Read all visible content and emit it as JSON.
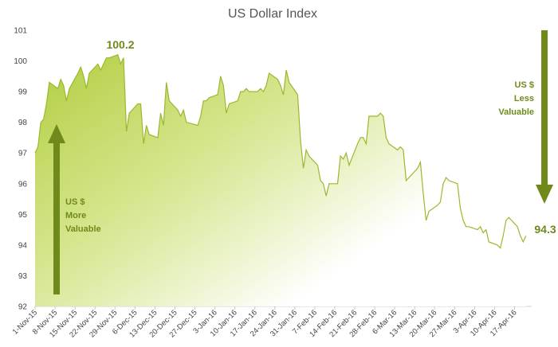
{
  "chart_data": {
    "type": "area",
    "title": "US Dollar Index",
    "xlabel": "",
    "ylabel": "",
    "ylim": [
      92,
      101
    ],
    "yticks": [
      92,
      93,
      94,
      95,
      96,
      97,
      98,
      99,
      100,
      101
    ],
    "xtick_labels": [
      "1-Nov-15",
      "8-Nov-15",
      "15-Nov-15",
      "22-Nov-15",
      "29-Nov-15",
      "6-Dec-15",
      "13-Dec-15",
      "20-Dec-15",
      "27-Dec-15",
      "3-Jan-16",
      "10-Jan-16",
      "17-Jan-16",
      "24-Jan-16",
      "31-Jan-16",
      "7-Feb-16",
      "14-Feb-16",
      "21-Feb-16",
      "28-Feb-16",
      "6-Mar-16",
      "13-Mar-16",
      "20-Mar-16",
      "27-Mar-16",
      "3-Apr-16",
      "10-Apr-16",
      "17-Apr-16"
    ],
    "grid": false,
    "colors": {
      "line": "#9ab82f",
      "fill_top": "#b5d048",
      "fill_bottom": "#ffffff",
      "arrow": "#6f8a1b",
      "annotation": "#6f8a1b"
    },
    "series": [
      {
        "values": [
          {
            "x": "2015-11-01",
            "y": 97.0
          },
          {
            "x": "2015-11-02",
            "y": 97.2
          },
          {
            "x": "2015-11-03",
            "y": 98.0
          },
          {
            "x": "2015-11-04",
            "y": 98.1
          },
          {
            "x": "2015-11-05",
            "y": 98.6
          },
          {
            "x": "2015-11-06",
            "y": 99.3
          },
          {
            "x": "2015-11-09",
            "y": 99.1
          },
          {
            "x": "2015-11-10",
            "y": 99.4
          },
          {
            "x": "2015-11-11",
            "y": 99.2
          },
          {
            "x": "2015-11-12",
            "y": 98.7
          },
          {
            "x": "2015-11-13",
            "y": 99.1
          },
          {
            "x": "2015-11-16",
            "y": 99.6
          },
          {
            "x": "2015-11-17",
            "y": 99.8
          },
          {
            "x": "2015-11-18",
            "y": 99.5
          },
          {
            "x": "2015-11-19",
            "y": 99.1
          },
          {
            "x": "2015-11-20",
            "y": 99.6
          },
          {
            "x": "2015-11-23",
            "y": 99.9
          },
          {
            "x": "2015-11-24",
            "y": 99.7
          },
          {
            "x": "2015-11-25",
            "y": 99.9
          },
          {
            "x": "2015-11-26",
            "y": 100.1
          },
          {
            "x": "2015-11-27",
            "y": 100.1
          },
          {
            "x": "2015-11-30",
            "y": 100.2
          },
          {
            "x": "2015-12-01",
            "y": 99.9
          },
          {
            "x": "2015-12-02",
            "y": 100.1
          },
          {
            "x": "2015-12-03",
            "y": 97.7
          },
          {
            "x": "2015-12-04",
            "y": 98.3
          },
          {
            "x": "2015-12-07",
            "y": 98.6
          },
          {
            "x": "2015-12-08",
            "y": 98.6
          },
          {
            "x": "2015-12-09",
            "y": 97.3
          },
          {
            "x": "2015-12-10",
            "y": 97.9
          },
          {
            "x": "2015-12-11",
            "y": 97.6
          },
          {
            "x": "2015-12-14",
            "y": 97.5
          },
          {
            "x": "2015-12-15",
            "y": 98.3
          },
          {
            "x": "2015-12-16",
            "y": 97.9
          },
          {
            "x": "2015-12-17",
            "y": 99.3
          },
          {
            "x": "2015-12-18",
            "y": 98.7
          },
          {
            "x": "2015-12-21",
            "y": 98.4
          },
          {
            "x": "2015-12-22",
            "y": 98.2
          },
          {
            "x": "2015-12-23",
            "y": 98.4
          },
          {
            "x": "2015-12-24",
            "y": 98.0
          },
          {
            "x": "2015-12-28",
            "y": 97.9
          },
          {
            "x": "2015-12-29",
            "y": 98.2
          },
          {
            "x": "2015-12-30",
            "y": 98.7
          },
          {
            "x": "2015-12-31",
            "y": 98.7
          },
          {
            "x": "2016-01-01",
            "y": 98.8
          },
          {
            "x": "2016-01-04",
            "y": 98.9
          },
          {
            "x": "2016-01-05",
            "y": 99.5
          },
          {
            "x": "2016-01-06",
            "y": 99.2
          },
          {
            "x": "2016-01-07",
            "y": 98.3
          },
          {
            "x": "2016-01-08",
            "y": 98.6
          },
          {
            "x": "2016-01-11",
            "y": 98.7
          },
          {
            "x": "2016-01-12",
            "y": 99.0
          },
          {
            "x": "2016-01-13",
            "y": 99.0
          },
          {
            "x": "2016-01-14",
            "y": 99.1
          },
          {
            "x": "2016-01-15",
            "y": 99.0
          },
          {
            "x": "2016-01-18",
            "y": 99.0
          },
          {
            "x": "2016-01-19",
            "y": 99.1
          },
          {
            "x": "2016-01-20",
            "y": 99.0
          },
          {
            "x": "2016-01-21",
            "y": 99.2
          },
          {
            "x": "2016-01-22",
            "y": 99.6
          },
          {
            "x": "2016-01-25",
            "y": 99.4
          },
          {
            "x": "2016-01-26",
            "y": 99.2
          },
          {
            "x": "2016-01-27",
            "y": 98.9
          },
          {
            "x": "2016-01-28",
            "y": 99.7
          },
          {
            "x": "2016-01-29",
            "y": 99.3
          },
          {
            "x": "2016-02-01",
            "y": 98.9
          },
          {
            "x": "2016-02-02",
            "y": 97.4
          },
          {
            "x": "2016-02-03",
            "y": 96.5
          },
          {
            "x": "2016-02-04",
            "y": 97.1
          },
          {
            "x": "2016-02-05",
            "y": 96.9
          },
          {
            "x": "2016-02-08",
            "y": 96.6
          },
          {
            "x": "2016-02-09",
            "y": 96.1
          },
          {
            "x": "2016-02-10",
            "y": 96.0
          },
          {
            "x": "2016-02-11",
            "y": 95.6
          },
          {
            "x": "2016-02-12",
            "y": 96.0
          },
          {
            "x": "2016-02-15",
            "y": 96.0
          },
          {
            "x": "2016-02-16",
            "y": 96.9
          },
          {
            "x": "2016-02-17",
            "y": 96.8
          },
          {
            "x": "2016-02-18",
            "y": 97.0
          },
          {
            "x": "2016-02-19",
            "y": 96.6
          },
          {
            "x": "2016-02-22",
            "y": 97.3
          },
          {
            "x": "2016-02-23",
            "y": 97.5
          },
          {
            "x": "2016-02-24",
            "y": 97.5
          },
          {
            "x": "2016-02-25",
            "y": 97.3
          },
          {
            "x": "2016-02-26",
            "y": 98.2
          },
          {
            "x": "2016-02-29",
            "y": 98.2
          },
          {
            "x": "2016-03-01",
            "y": 98.3
          },
          {
            "x": "2016-03-02",
            "y": 98.2
          },
          {
            "x": "2016-03-03",
            "y": 97.5
          },
          {
            "x": "2016-03-04",
            "y": 97.3
          },
          {
            "x": "2016-03-07",
            "y": 97.1
          },
          {
            "x": "2016-03-08",
            "y": 97.2
          },
          {
            "x": "2016-03-09",
            "y": 97.1
          },
          {
            "x": "2016-03-10",
            "y": 96.1
          },
          {
            "x": "2016-03-11",
            "y": 96.2
          },
          {
            "x": "2016-03-14",
            "y": 96.5
          },
          {
            "x": "2016-03-15",
            "y": 96.7
          },
          {
            "x": "2016-03-16",
            "y": 95.7
          },
          {
            "x": "2016-03-17",
            "y": 94.8
          },
          {
            "x": "2016-03-18",
            "y": 95.1
          },
          {
            "x": "2016-03-21",
            "y": 95.3
          },
          {
            "x": "2016-03-22",
            "y": 95.4
          },
          {
            "x": "2016-03-23",
            "y": 96.0
          },
          {
            "x": "2016-03-24",
            "y": 96.2
          },
          {
            "x": "2016-03-25",
            "y": 96.1
          },
          {
            "x": "2016-03-28",
            "y": 96.0
          },
          {
            "x": "2016-03-29",
            "y": 95.2
          },
          {
            "x": "2016-03-30",
            "y": 94.8
          },
          {
            "x": "2016-03-31",
            "y": 94.6
          },
          {
            "x": "2016-04-01",
            "y": 94.6
          },
          {
            "x": "2016-04-04",
            "y": 94.5
          },
          {
            "x": "2016-04-05",
            "y": 94.6
          },
          {
            "x": "2016-04-06",
            "y": 94.4
          },
          {
            "x": "2016-04-07",
            "y": 94.5
          },
          {
            "x": "2016-04-08",
            "y": 94.1
          },
          {
            "x": "2016-04-11",
            "y": 94.0
          },
          {
            "x": "2016-04-12",
            "y": 93.9
          },
          {
            "x": "2016-04-13",
            "y": 94.3
          },
          {
            "x": "2016-04-14",
            "y": 94.8
          },
          {
            "x": "2016-04-15",
            "y": 94.9
          },
          {
            "x": "2016-04-18",
            "y": 94.6
          },
          {
            "x": "2016-04-19",
            "y": 94.3
          },
          {
            "x": "2016-04-20",
            "y": 94.1
          },
          {
            "x": "2016-04-21",
            "y": 94.3
          }
        ]
      }
    ],
    "annotations": {
      "peak_label": "100.2",
      "end_label": "94.3",
      "more_valuable": [
        "US $",
        "More",
        "Valuable"
      ],
      "less_valuable": [
        "US $",
        "Less",
        "Valuable"
      ]
    }
  }
}
